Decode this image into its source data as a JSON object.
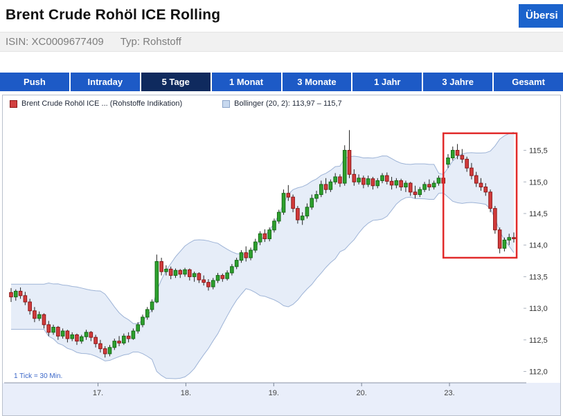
{
  "header": {
    "title": "Brent Crude Rohöl ICE Rolling",
    "overview_button": "Übersi"
  },
  "meta_bar": {
    "isin_label": "ISIN:",
    "isin": "XC0009677409",
    "typ_label": "Typ:",
    "typ": "Rohstoff"
  },
  "tabs": [
    {
      "label": "Push"
    },
    {
      "label": "Intraday"
    },
    {
      "label": "5 Tage",
      "active": true
    },
    {
      "label": "1 Monat"
    },
    {
      "label": "3 Monate"
    },
    {
      "label": "1 Jahr"
    },
    {
      "label": "3 Jahre"
    },
    {
      "label": "Gesamt"
    }
  ],
  "legend": [
    {
      "label": "Brent Crude Rohöl ICE ... (Rohstoffe Indikation)",
      "swatch": "#d24040",
      "swatch_border": "#8d1616"
    },
    {
      "label": "Bollinger (20, 2): 113,97 – 115,7",
      "swatch": "#c7d8ef",
      "swatch_border": "#8aa3c8"
    }
  ],
  "chart_data": {
    "type": "candlestick",
    "title": "Brent Crude Rohöl ICE Rolling — 5 Tage",
    "footnote": "1 Tick = 30 Min.",
    "ylim": [
      111.82,
      116.02
    ],
    "y_ticks": [
      115.5,
      115.0,
      114.5,
      114.0,
      113.5,
      113.0,
      112.5,
      112.0
    ],
    "x_labels": [
      {
        "label": "17.",
        "i": 18.5
      },
      {
        "label": "18.",
        "i": 37.2
      },
      {
        "label": "19.",
        "i": 55.9
      },
      {
        "label": "20.",
        "i": 74.6
      },
      {
        "label": "23.",
        "i": 93.3
      }
    ],
    "bollinger": {
      "window": 20,
      "mult": 2,
      "last_range": "113,97 – 115,7"
    },
    "highlight_box": {
      "i1": 92.0,
      "i2": 107.6,
      "p1": 113.8,
      "p2": 115.77
    },
    "candles": [
      [
        113.25,
        113.32,
        113.1,
        113.18
      ],
      [
        113.18,
        113.3,
        113.12,
        113.27
      ],
      [
        113.27,
        113.33,
        113.15,
        113.2
      ],
      [
        113.2,
        113.26,
        113.05,
        113.1
      ],
      [
        113.1,
        113.15,
        112.9,
        112.96
      ],
      [
        112.96,
        113.02,
        112.78,
        112.84
      ],
      [
        112.84,
        112.95,
        112.8,
        112.9
      ],
      [
        112.9,
        112.92,
        112.68,
        112.74
      ],
      [
        112.74,
        112.8,
        112.56,
        112.62
      ],
      [
        112.62,
        112.74,
        112.58,
        112.7
      ],
      [
        112.7,
        112.72,
        112.5,
        112.56
      ],
      [
        112.56,
        112.68,
        112.52,
        112.64
      ],
      [
        112.64,
        112.66,
        112.46,
        112.52
      ],
      [
        112.52,
        112.62,
        112.48,
        112.58
      ],
      [
        112.58,
        112.6,
        112.42,
        112.48
      ],
      [
        112.48,
        112.58,
        112.44,
        112.55
      ],
      [
        112.55,
        112.66,
        112.5,
        112.62
      ],
      [
        112.62,
        112.64,
        112.48,
        112.54
      ],
      [
        112.54,
        112.58,
        112.38,
        112.44
      ],
      [
        112.44,
        112.5,
        112.3,
        112.36
      ],
      [
        112.36,
        112.4,
        112.22,
        112.28
      ],
      [
        112.28,
        112.42,
        112.24,
        112.38
      ],
      [
        112.38,
        112.52,
        112.34,
        112.48
      ],
      [
        112.48,
        112.56,
        112.4,
        112.45
      ],
      [
        112.45,
        112.6,
        112.42,
        112.56
      ],
      [
        112.56,
        112.62,
        112.46,
        112.52
      ],
      [
        112.52,
        112.68,
        112.5,
        112.64
      ],
      [
        112.64,
        112.78,
        112.6,
        112.74
      ],
      [
        112.74,
        112.9,
        112.7,
        112.86
      ],
      [
        112.86,
        113.02,
        112.82,
        112.98
      ],
      [
        112.98,
        113.14,
        112.94,
        113.1
      ],
      [
        113.1,
        113.85,
        113.08,
        113.74
      ],
      [
        113.74,
        113.8,
        113.52,
        113.58
      ],
      [
        113.58,
        113.68,
        113.52,
        113.62
      ],
      [
        113.62,
        113.66,
        113.46,
        113.52
      ],
      [
        113.52,
        113.63,
        113.48,
        113.6
      ],
      [
        113.6,
        113.62,
        113.48,
        113.54
      ],
      [
        113.54,
        113.64,
        113.5,
        113.61
      ],
      [
        113.61,
        113.63,
        113.44,
        113.5
      ],
      [
        113.5,
        113.58,
        113.42,
        113.55
      ],
      [
        113.55,
        113.57,
        113.4,
        113.45
      ],
      [
        113.45,
        113.52,
        113.36,
        113.41
      ],
      [
        113.41,
        113.46,
        113.28,
        113.34
      ],
      [
        113.34,
        113.48,
        113.3,
        113.44
      ],
      [
        113.44,
        113.56,
        113.4,
        113.52
      ],
      [
        113.52,
        113.55,
        113.42,
        113.47
      ],
      [
        113.47,
        113.6,
        113.44,
        113.56
      ],
      [
        113.56,
        113.7,
        113.52,
        113.66
      ],
      [
        113.66,
        113.8,
        113.62,
        113.76
      ],
      [
        113.76,
        113.92,
        113.72,
        113.88
      ],
      [
        113.88,
        113.98,
        113.74,
        113.8
      ],
      [
        113.8,
        113.96,
        113.76,
        113.92
      ],
      [
        113.92,
        114.1,
        113.88,
        114.05
      ],
      [
        114.05,
        114.22,
        114.0,
        114.18
      ],
      [
        114.18,
        114.25,
        114.05,
        114.1
      ],
      [
        114.1,
        114.28,
        114.06,
        114.24
      ],
      [
        114.24,
        114.42,
        114.2,
        114.38
      ],
      [
        114.38,
        114.56,
        114.34,
        114.52
      ],
      [
        114.52,
        114.88,
        114.48,
        114.82
      ],
      [
        114.82,
        114.95,
        114.7,
        114.76
      ],
      [
        114.76,
        114.8,
        114.52,
        114.58
      ],
      [
        114.58,
        114.62,
        114.34,
        114.4
      ],
      [
        114.4,
        114.52,
        114.32,
        114.46
      ],
      [
        114.46,
        114.66,
        114.42,
        114.6
      ],
      [
        114.6,
        114.8,
        114.56,
        114.74
      ],
      [
        114.74,
        114.86,
        114.68,
        114.8
      ],
      [
        114.8,
        115.02,
        114.76,
        114.96
      ],
      [
        114.96,
        115.06,
        114.82,
        114.88
      ],
      [
        114.88,
        115.04,
        114.84,
        115.0
      ],
      [
        115.0,
        115.14,
        114.96,
        115.08
      ],
      [
        115.08,
        115.12,
        114.92,
        114.98
      ],
      [
        114.98,
        115.58,
        114.94,
        115.5
      ],
      [
        115.5,
        115.82,
        115.06,
        115.12
      ],
      [
        115.12,
        115.2,
        114.94,
        115.0
      ],
      [
        115.0,
        115.12,
        114.96,
        115.06
      ],
      [
        115.06,
        115.1,
        114.9,
        114.96
      ],
      [
        114.96,
        115.1,
        114.92,
        115.05
      ],
      [
        115.05,
        115.08,
        114.88,
        114.94
      ],
      [
        114.94,
        115.06,
        114.9,
        115.02
      ],
      [
        115.02,
        115.14,
        114.98,
        115.1
      ],
      [
        115.1,
        115.15,
        114.96,
        115.01
      ],
      [
        115.01,
        115.08,
        114.88,
        114.95
      ],
      [
        114.95,
        115.06,
        114.9,
        115.02
      ],
      [
        115.02,
        115.05,
        114.86,
        114.92
      ],
      [
        114.92,
        115.02,
        114.84,
        114.98
      ],
      [
        114.98,
        115.0,
        114.78,
        114.84
      ],
      [
        114.84,
        114.94,
        114.74,
        114.8
      ],
      [
        114.8,
        114.92,
        114.76,
        114.88
      ],
      [
        114.88,
        115.0,
        114.84,
        114.96
      ],
      [
        114.96,
        115.04,
        114.86,
        114.92
      ],
      [
        114.92,
        115.02,
        114.88,
        114.98
      ],
      [
        114.98,
        115.1,
        114.94,
        115.06
      ],
      [
        115.06,
        115.12,
        114.92,
        114.98
      ],
      [
        115.28,
        115.44,
        115.22,
        115.38
      ],
      [
        115.38,
        115.56,
        115.34,
        115.5
      ],
      [
        115.5,
        115.6,
        115.36,
        115.42
      ],
      [
        115.42,
        115.52,
        115.3,
        115.36
      ],
      [
        115.36,
        115.4,
        115.16,
        115.22
      ],
      [
        115.22,
        115.3,
        115.04,
        115.1
      ],
      [
        115.1,
        115.16,
        114.92,
        114.98
      ],
      [
        114.98,
        115.06,
        114.86,
        114.92
      ],
      [
        114.92,
        114.98,
        114.78,
        114.84
      ],
      [
        114.84,
        114.88,
        114.52,
        114.58
      ],
      [
        114.58,
        114.62,
        114.18,
        114.24
      ],
      [
        114.24,
        114.28,
        113.87,
        113.95
      ],
      [
        113.95,
        114.12,
        113.9,
        114.08
      ],
      [
        114.08,
        114.18,
        114.0,
        114.12
      ],
      [
        114.12,
        114.2,
        114.04,
        114.1
      ]
    ],
    "colors": {
      "up": "#2ea12e",
      "up_border": "#156b15",
      "down": "#d23c3c",
      "down_border": "#8d1616",
      "wick": "#222222",
      "band_fill": "#dde7f6",
      "band_stroke": "#9db3d6",
      "highlight": "#e12a2a",
      "axis": "#8892a6",
      "strip_bg": "#e9eefa",
      "tick_text": "#444444",
      "footnote_color": "#3a66c8",
      "tab_active": "#0f2a5e",
      "tab_inactive": "#1d5ac6",
      "button_blue": "#1b63cc"
    }
  }
}
